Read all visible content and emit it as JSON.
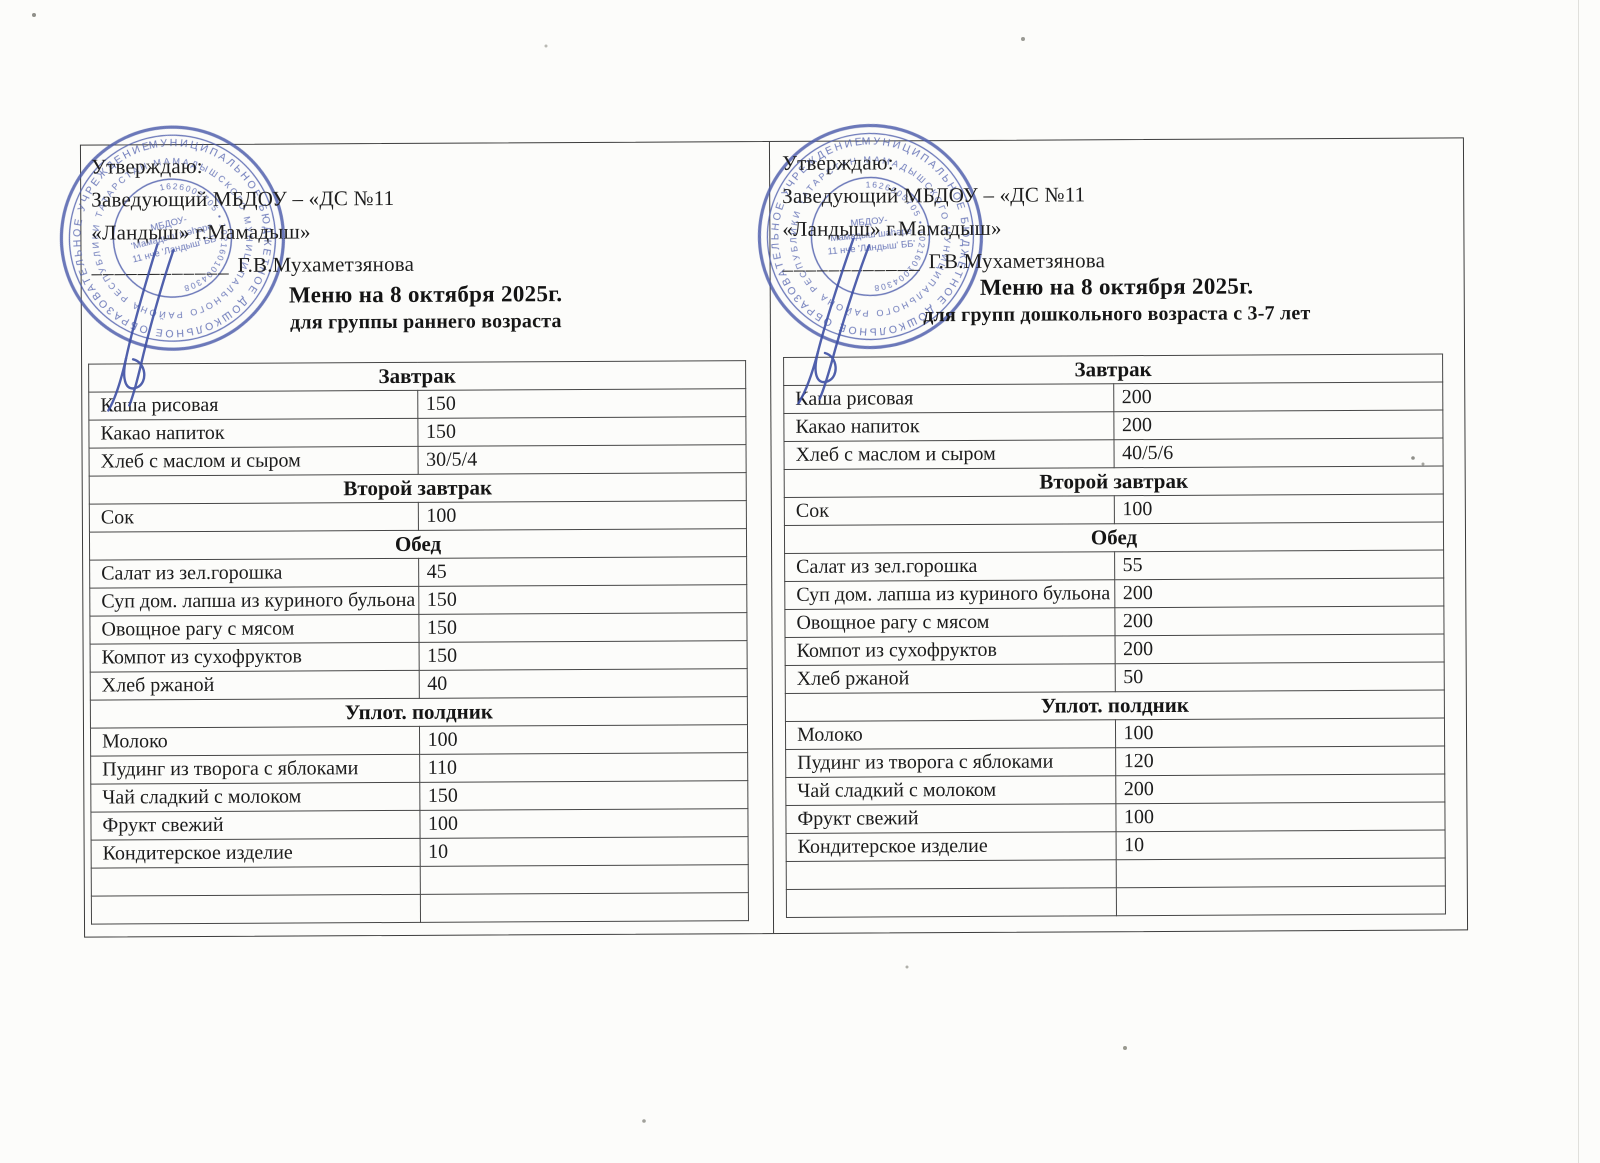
{
  "panels": [
    {
      "approval": {
        "line1": "Утверждаю:",
        "line2": "Заведующий МБДОУ – «ДС №11",
        "line3": "«Ландыш» г.Мамадыш»",
        "signature_line": "____________",
        "signer": "Г.В.Мухаметзянова"
      },
      "title": "Меню на 8 октября 2025г.",
      "subtitle": "для группы раннего возраста",
      "menu": {
        "empty_rows": 2,
        "sections": [
          {
            "name": "Завтрак",
            "items": [
              {
                "dish": "Каша рисовая",
                "qty": "150"
              },
              {
                "dish": "Какао напиток",
                "qty": "150"
              },
              {
                "dish": "Хлеб с маслом и сыром",
                "qty": "30/5/4"
              }
            ]
          },
          {
            "name": "Второй завтрак",
            "items": [
              {
                "dish": "Сок",
                "qty": "100"
              }
            ]
          },
          {
            "name": "Обед",
            "items": [
              {
                "dish": "Салат из зел.горошка",
                "qty": "45"
              },
              {
                "dish": "Суп дом. лапша из куриного бульона",
                "qty": "150"
              },
              {
                "dish": "Овощное рагу с мясом",
                "qty": "150"
              },
              {
                "dish": "Компот из сухофруктов",
                "qty": "150"
              },
              {
                "dish": "Хлеб ржаной",
                "qty": "40"
              }
            ]
          },
          {
            "name": "Уплот. полдник",
            "items": [
              {
                "dish": "Молоко",
                "qty": "100"
              },
              {
                "dish": "Пудинг из творога с яблоками",
                "qty": "110"
              },
              {
                "dish": "Чай сладкий с молоком",
                "qty": "150"
              },
              {
                "dish": "Фрукт свежий",
                "qty": "100"
              },
              {
                "dish": "Кондитерское изделие",
                "qty": "10"
              }
            ]
          }
        ]
      }
    },
    {
      "approval": {
        "line1": "Утверждаю:",
        "line2": "Заведующий МБДОУ – «ДС №11",
        "line3": "«Ландыш» г.Мамадыш»",
        "signature_line": "____________",
        "signer": "Г.В.Мухаметзянова"
      },
      "title": "Меню на 8 октября 2025г.",
      "subtitle": "для групп дошкольного возраста с 3-7 лет",
      "menu": {
        "empty_rows": 2,
        "sections": [
          {
            "name": "Завтрак",
            "items": [
              {
                "dish": "Каша рисовая",
                "qty": "200"
              },
              {
                "dish": "Какао напиток",
                "qty": "200"
              },
              {
                "dish": "Хлеб с маслом и сыром",
                "qty": "40/5/6"
              }
            ]
          },
          {
            "name": "Второй завтрак",
            "items": [
              {
                "dish": "Сок",
                "qty": "100"
              }
            ]
          },
          {
            "name": "Обед",
            "items": [
              {
                "dish": "Салат из зел.горошка",
                "qty": "55"
              },
              {
                "dish": "Суп дом. лапша из куриного бульона",
                "qty": "200"
              },
              {
                "dish": "Овощное рагу с мясом",
                "qty": "200"
              },
              {
                "dish": "Компот из сухофруктов",
                "qty": "200"
              },
              {
                "dish": "Хлеб ржаной",
                "qty": "50"
              }
            ]
          },
          {
            "name": "Уплот. полдник",
            "items": [
              {
                "dish": "Молоко",
                "qty": "100"
              },
              {
                "dish": "Пудинг из творога с яблоками",
                "qty": "120"
              },
              {
                "dish": "Чай сладкий с молоком",
                "qty": "200"
              },
              {
                "dish": "Фрукт свежий",
                "qty": "100"
              },
              {
                "dish": "Кондитерское изделие",
                "qty": "10"
              }
            ]
          }
        ]
      }
    }
  ],
  "stamp": {
    "ring_outer": "МУНИЦИПАЛЬНОЕ БЮДЖЕТНОЕ ДОШКОЛЬНОЕ ОБРАЗОВАТЕЛЬНОЕ УЧРЕЖДЕНИЕ ",
    "ring_middle": "МАМАДЫШСКОГО МУНИЦИПАЛЬНОГО РАЙОНА РЕСПУБЛИКИ ТАТАРСТАН  •  ",
    "ring_numbers": "1626005705 • 1021601004308",
    "center_lines": [
      "МБДОУ-",
      "'Мамадыш шәһәре",
      "11 нче 'Ландыш' ББ'"
    ],
    "ink_color": "#4c5cab"
  }
}
